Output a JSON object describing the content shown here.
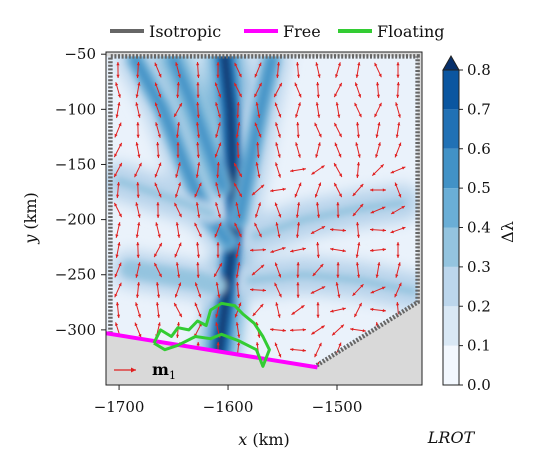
{
  "chart_data": {
    "type": "heatmap",
    "xlabel": "x (km)",
    "ylabel": "y (km)",
    "xlim": [
      -1712,
      -1422
    ],
    "ylim": [
      -350,
      -48
    ],
    "xticks": [
      -1700,
      -1600,
      -1500
    ],
    "xtick_labels": [
      "−1700",
      "−1600",
      "−1500"
    ],
    "yticks": [
      -50,
      -100,
      -150,
      -200,
      -250,
      -300
    ],
    "ytick_labels": [
      "−50",
      "−100",
      "−150",
      "−200",
      "−250",
      "−300"
    ],
    "legend": {
      "placement": "top",
      "entries": [
        {
          "label": "Isotropic",
          "color": "#666666"
        },
        {
          "label": "Free",
          "color": "#ff00ff"
        },
        {
          "label": "Floating",
          "color": "#33cc33"
        }
      ]
    },
    "colorbar": {
      "label": "Δλ",
      "range": [
        0,
        0.8
      ],
      "ticks": [
        0.0,
        0.1,
        0.2,
        0.3,
        0.4,
        0.5,
        0.6,
        0.7,
        0.8
      ],
      "tick_labels": [
        "0.0",
        "0.1",
        "0.2",
        "0.3",
        "0.4",
        "0.5",
        "0.6",
        "0.7",
        "0.8"
      ],
      "colors": [
        "#f3f8fe",
        "#d9e8f5",
        "#bcd6ec",
        "#94c4df",
        "#6aaed6",
        "#4292c6",
        "#2171b5",
        "#0b56a0",
        "#08306b"
      ]
    },
    "vector_legend": {
      "label": "m",
      "subscript": "1",
      "color": "#e02020"
    },
    "corner_label": "LROT",
    "isotropic_boundary": [
      {
        "x": -1708,
        "y": -52
      },
      {
        "x": -1426,
        "y": -52
      },
      {
        "x": -1426,
        "y": -275
      },
      {
        "x": -1520,
        "y": -333
      }
    ],
    "free_boundary": [
      {
        "x": -1712,
        "y": -303
      },
      {
        "x": -1518,
        "y": -334
      }
    ],
    "floating_boundary": [
      {
        "x": -1668,
        "y": -312
      },
      {
        "x": -1662,
        "y": -300
      },
      {
        "x": -1652,
        "y": -306
      },
      {
        "x": -1646,
        "y": -298
      },
      {
        "x": -1636,
        "y": -300
      },
      {
        "x": -1628,
        "y": -292
      },
      {
        "x": -1620,
        "y": -296
      },
      {
        "x": -1616,
        "y": -282
      },
      {
        "x": -1606,
        "y": -276
      },
      {
        "x": -1594,
        "y": -278
      },
      {
        "x": -1586,
        "y": -286
      },
      {
        "x": -1576,
        "y": -294
      },
      {
        "x": -1568,
        "y": -306
      },
      {
        "x": -1562,
        "y": -318
      },
      {
        "x": -1568,
        "y": -333
      },
      {
        "x": -1574,
        "y": -318
      },
      {
        "x": -1590,
        "y": -310
      },
      {
        "x": -1606,
        "y": -304
      },
      {
        "x": -1616,
        "y": -308
      },
      {
        "x": -1630,
        "y": -306
      },
      {
        "x": -1646,
        "y": -314
      },
      {
        "x": -1658,
        "y": -318
      },
      {
        "x": -1668,
        "y": -312
      }
    ],
    "field_features": [
      {
        "name": "main-trunk",
        "path": [
          [
            -1603,
            -52
          ],
          [
            -1598,
            -100
          ],
          [
            -1596,
            -150
          ],
          [
            -1593,
            -200
          ],
          [
            -1598,
            -240
          ],
          [
            -1603,
            -280
          ],
          [
            -1608,
            -320
          ]
        ],
        "value": 0.75
      },
      {
        "name": "west-branch",
        "path": [
          [
            -1685,
            -55
          ],
          [
            -1660,
            -100
          ],
          [
            -1640,
            -150
          ],
          [
            -1620,
            -195
          ],
          [
            -1600,
            -220
          ]
        ],
        "value": 0.45
      },
      {
        "name": "northwest-branch",
        "path": [
          [
            -1650,
            -55
          ],
          [
            -1635,
            -90
          ],
          [
            -1620,
            -130
          ],
          [
            -1605,
            -170
          ]
        ],
        "value": 0.5
      },
      {
        "name": "east-branch",
        "path": [
          [
            -1560,
            -55
          ],
          [
            -1570,
            -100
          ],
          [
            -1580,
            -150
          ],
          [
            -1590,
            -200
          ]
        ],
        "value": 0.45
      },
      {
        "name": "east-tributary",
        "path": [
          [
            -1440,
            -185
          ],
          [
            -1480,
            -190
          ],
          [
            -1530,
            -200
          ],
          [
            -1575,
            -215
          ]
        ],
        "value": 0.3
      },
      {
        "name": "southeast-tributary",
        "path": [
          [
            -1430,
            -265
          ],
          [
            -1480,
            -255
          ],
          [
            -1530,
            -250
          ],
          [
            -1580,
            -255
          ]
        ],
        "value": 0.3
      },
      {
        "name": "southwest-tributary",
        "path": [
          [
            -1690,
            -245
          ],
          [
            -1660,
            -250
          ],
          [
            -1630,
            -255
          ],
          [
            -1610,
            -260
          ]
        ],
        "value": 0.35
      },
      {
        "name": "west-tributary",
        "path": [
          [
            -1700,
            -165
          ],
          [
            -1670,
            -175
          ],
          [
            -1640,
            -185
          ],
          [
            -1615,
            -195
          ]
        ],
        "value": 0.3
      }
    ]
  }
}
